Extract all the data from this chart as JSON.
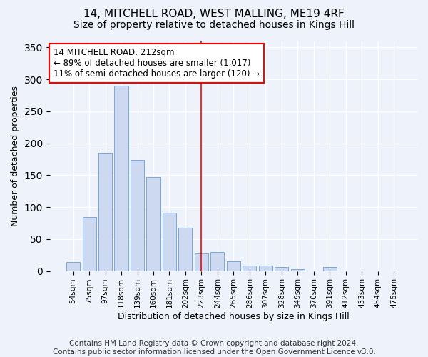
{
  "title": "14, MITCHELL ROAD, WEST MALLING, ME19 4RF",
  "subtitle": "Size of property relative to detached houses in Kings Hill",
  "xlabel": "Distribution of detached houses by size in Kings Hill",
  "ylabel": "Number of detached properties",
  "categories": [
    "54sqm",
    "75sqm",
    "97sqm",
    "118sqm",
    "139sqm",
    "160sqm",
    "181sqm",
    "202sqm",
    "223sqm",
    "244sqm",
    "265sqm",
    "286sqm",
    "307sqm",
    "328sqm",
    "349sqm",
    "370sqm",
    "391sqm",
    "412sqm",
    "433sqm",
    "454sqm",
    "475sqm"
  ],
  "values": [
    14,
    85,
    185,
    290,
    174,
    147,
    91,
    68,
    27,
    30,
    15,
    8,
    9,
    6,
    3,
    0,
    6,
    0,
    0,
    0,
    0
  ],
  "bar_color": "#cdd9f0",
  "bar_edge_color": "#7aa8d8",
  "vline_x": 8.0,
  "vline_color": "red",
  "annotation_text": "14 MITCHELL ROAD: 212sqm\n← 89% of detached houses are smaller (1,017)\n11% of semi-detached houses are larger (120) →",
  "annotation_box_color": "white",
  "annotation_box_edge_color": "red",
  "ylim": [
    0,
    360
  ],
  "yticks": [
    0,
    50,
    100,
    150,
    200,
    250,
    300,
    350
  ],
  "footer_text": "Contains HM Land Registry data © Crown copyright and database right 2024.\nContains public sector information licensed under the Open Government Licence v3.0.",
  "background_color": "#eef2fb",
  "plot_background_color": "#eef2fb",
  "title_fontsize": 11,
  "subtitle_fontsize": 10,
  "xlabel_fontsize": 9,
  "ylabel_fontsize": 9,
  "tick_fontsize": 7.5,
  "footer_fontsize": 7.5,
  "annotation_fontsize": 8.5
}
